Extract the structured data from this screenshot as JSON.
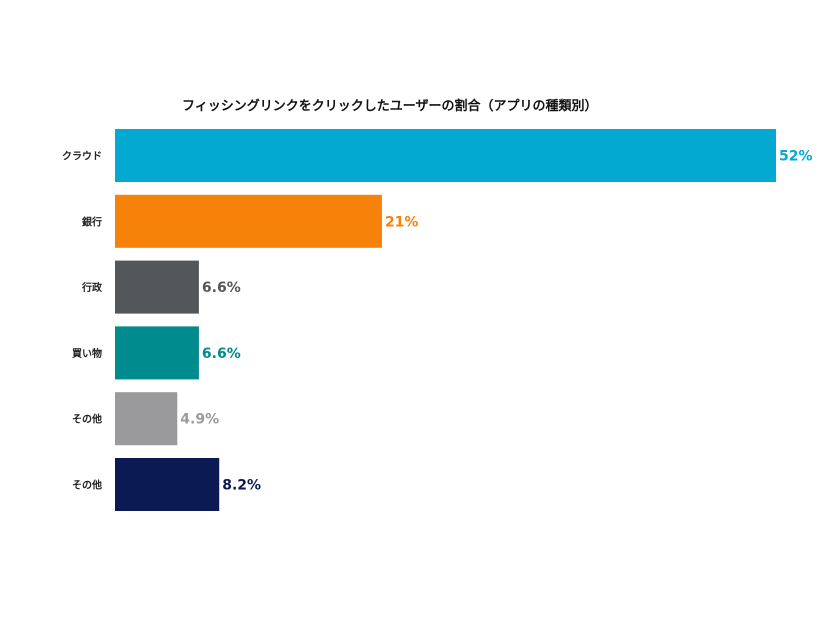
{
  "chart_data": {
    "type": "bar",
    "orientation": "horizontal",
    "title": "フィッシングリンクをクリックしたユーザーの割合（アプリの種類別）",
    "categories": [
      "クラウド",
      "銀行",
      "行政",
      "買い物",
      "その他",
      "その他"
    ],
    "values": [
      52,
      21,
      6.6,
      6.6,
      4.9,
      8.2
    ],
    "value_labels": [
      "52%",
      "21%",
      "6.6%",
      "6.6%",
      "4.9%",
      "8.2%"
    ],
    "colors": [
      "#03a9d0",
      "#f7820a",
      "#53575a",
      "#008b8e",
      "#9a9a9c",
      "#0b1a52"
    ],
    "xlim": [
      0,
      52
    ],
    "grid": false,
    "legend": "none"
  }
}
